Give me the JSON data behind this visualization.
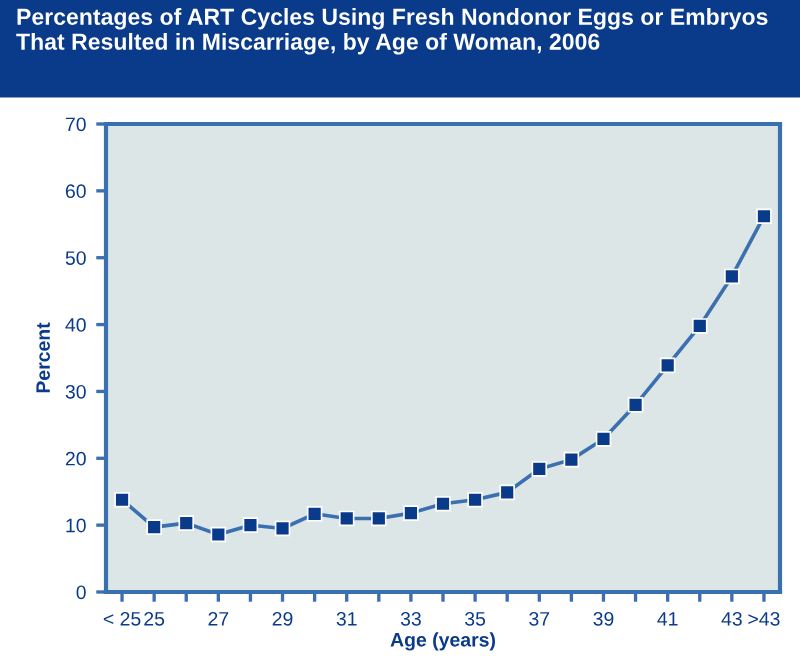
{
  "chart_data": {
    "type": "line",
    "title": "Percentages of ART Cycles Using Fresh Nondonor Eggs or Embryos\nThat Resulted in Miscarriage, by Age of Woman, 2006",
    "xlabel": "Age (years)",
    "ylabel": "Percent",
    "categories": [
      "< 25",
      "25",
      null,
      "27",
      null,
      "29",
      null,
      "31",
      null,
      "33",
      null,
      "35",
      null,
      "37",
      null,
      "39",
      null,
      "41",
      null,
      "43",
      ">43"
    ],
    "series": [
      {
        "color": "#0a3a8a",
        "values": [
          13.8,
          9.7,
          10.3,
          8.6,
          10.0,
          9.5,
          11.7,
          11.0,
          11.0,
          11.8,
          13.2,
          13.8,
          14.9,
          18.4,
          19.8,
          22.9,
          28.0,
          33.9,
          39.8,
          47.2,
          56.2
        ]
      }
    ],
    "ylim": [
      0,
      70
    ],
    "yticks": [
      0,
      10,
      20,
      30,
      40,
      50,
      60,
      70
    ],
    "grid": false,
    "legend": false,
    "marker": "square",
    "line_style": "solid"
  }
}
